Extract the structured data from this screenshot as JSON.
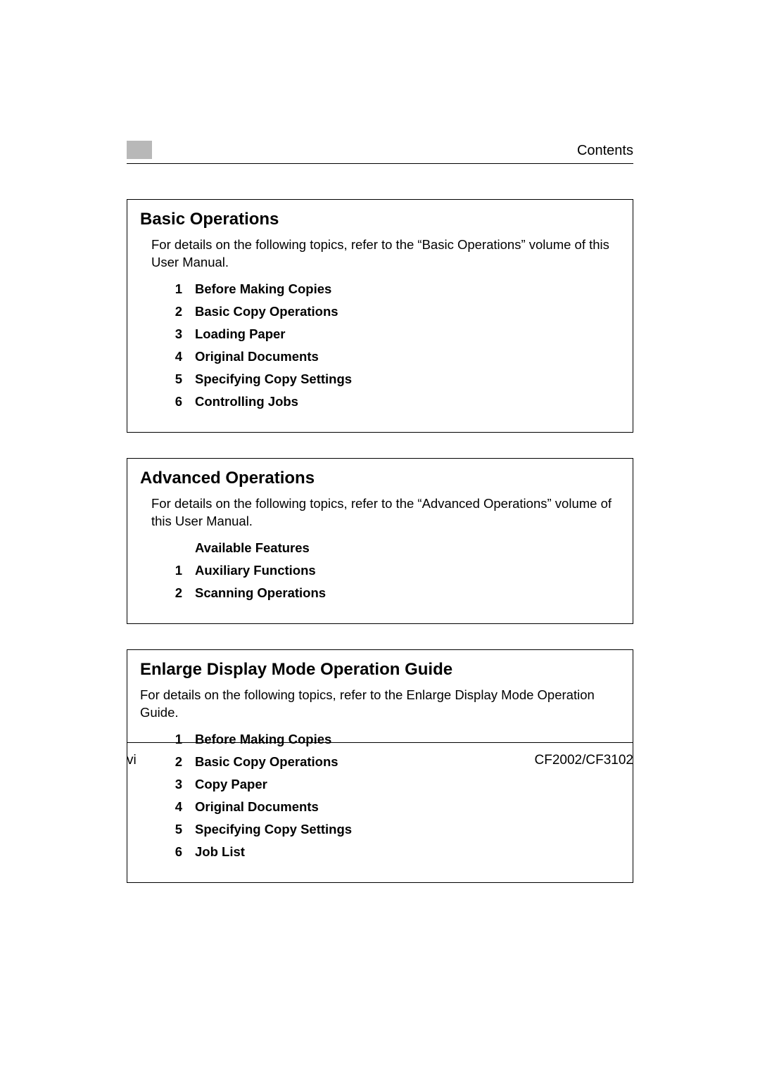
{
  "header": {
    "title": "Contents"
  },
  "sections": [
    {
      "title": "Basic Operations",
      "desc": "For details on the following topics, refer to the “Basic Operations” volume of this User Manual.",
      "desc_indented": true,
      "items": [
        {
          "num": "1",
          "label": "Before Making Copies"
        },
        {
          "num": "2",
          "label": "Basic Copy Operations"
        },
        {
          "num": "3",
          "label": "Loading Paper"
        },
        {
          "num": "4",
          "label": "Original Documents"
        },
        {
          "num": "5",
          "label": "Specifying Copy Settings"
        },
        {
          "num": "6",
          "label": "Controlling Jobs"
        }
      ]
    },
    {
      "title": "Advanced Operations",
      "desc": "For details on the following topics, refer to the “Advanced Operations” volume of this User Manual.",
      "desc_indented": true,
      "items": [
        {
          "num": "",
          "label": "Available Features"
        },
        {
          "num": "1",
          "label": "Auxiliary Functions"
        },
        {
          "num": "2",
          "label": "Scanning Operations"
        }
      ]
    },
    {
      "title": "Enlarge Display Mode Operation Guide",
      "desc": "For details on the following topics, refer to the Enlarge Display Mode Operation Guide.",
      "desc_indented": false,
      "items": [
        {
          "num": "1",
          "label": "Before Making Copies"
        },
        {
          "num": "2",
          "label": "Basic Copy Operations"
        },
        {
          "num": "3",
          "label": "Copy Paper"
        },
        {
          "num": "4",
          "label": "Original Documents"
        },
        {
          "num": "5",
          "label": "Specifying Copy Settings"
        },
        {
          "num": "6",
          "label": "Job List"
        }
      ]
    }
  ],
  "footer": {
    "page_number": "vi",
    "model": "CF2002/CF3102"
  }
}
